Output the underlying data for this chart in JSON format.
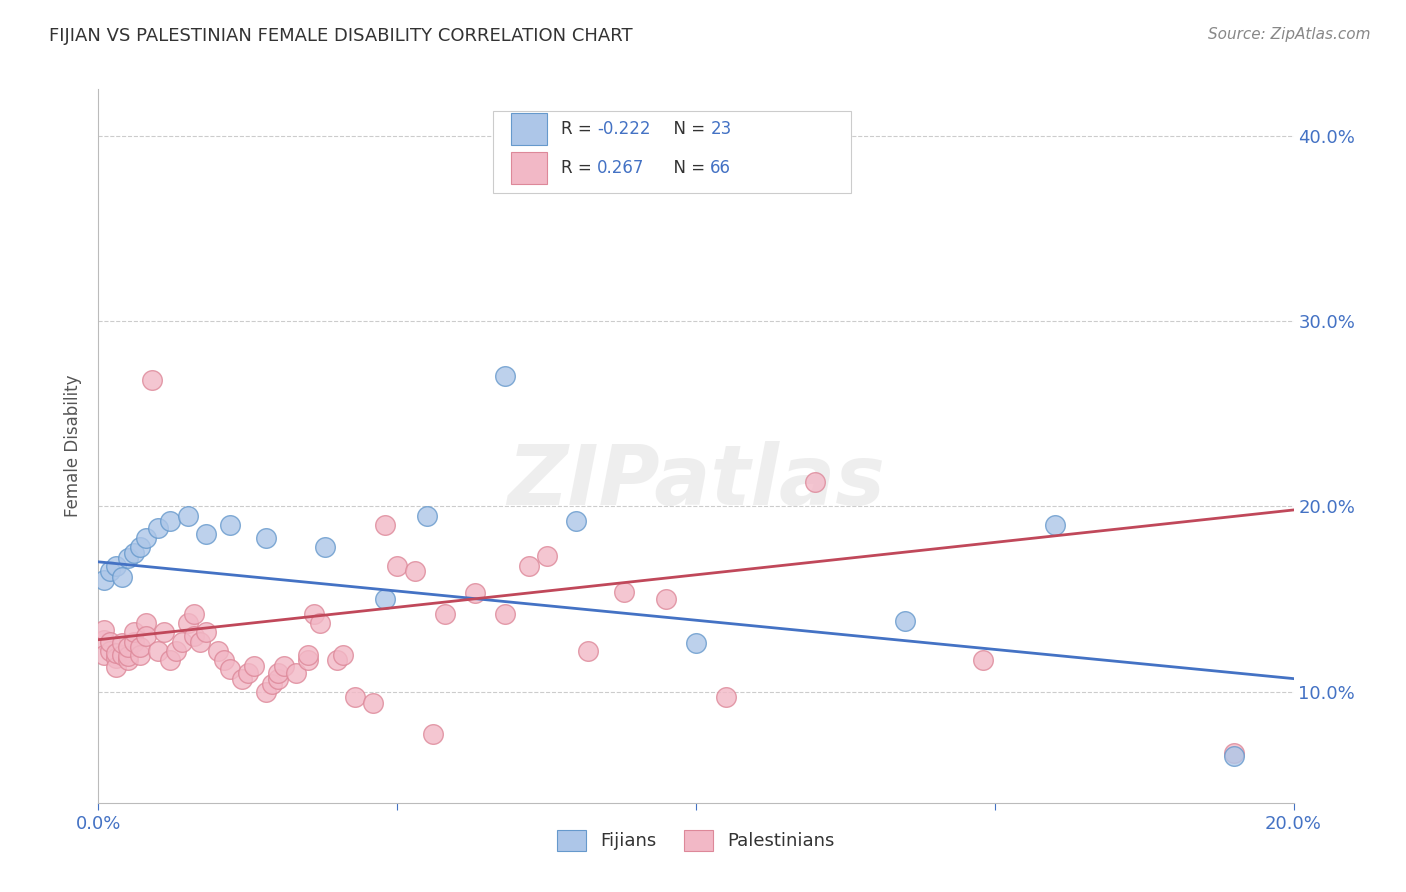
{
  "title": "FIJIAN VS PALESTINIAN FEMALE DISABILITY CORRELATION CHART",
  "source": "Source: ZipAtlas.com",
  "ylabel_label": "Female Disability",
  "xlim": [
    0.0,
    0.2
  ],
  "ylim": [
    0.04,
    0.425
  ],
  "xtick_positions": [
    0.0,
    0.05,
    0.1,
    0.15,
    0.2
  ],
  "xtick_labels": [
    "0.0%",
    "",
    "",
    "",
    "20.0%"
  ],
  "ytick_positions": [
    0.1,
    0.2,
    0.3,
    0.4
  ],
  "ytick_labels": [
    "10.0%",
    "20.0%",
    "30.0%",
    "40.0%"
  ],
  "fijian_color": "#adc6e8",
  "fijian_edge": "#6699cc",
  "palestinian_color": "#f2b8c6",
  "palestinian_edge": "#dd8899",
  "line_fijian": "#4472c4",
  "line_palestinian": "#c0485a",
  "line_fijian_y0": 0.17,
  "line_fijian_y1": 0.107,
  "line_palestinian_y0": 0.128,
  "line_palestinian_y1": 0.198,
  "R_fijian": "-0.222",
  "N_fijian": "23",
  "R_palestinian": "0.267",
  "N_palestinian": "66",
  "fijian_x": [
    0.001,
    0.002,
    0.003,
    0.004,
    0.005,
    0.006,
    0.007,
    0.008,
    0.01,
    0.012,
    0.015,
    0.018,
    0.022,
    0.028,
    0.038,
    0.048,
    0.055,
    0.068,
    0.08,
    0.1,
    0.135,
    0.16,
    0.19
  ],
  "fijian_y": [
    0.16,
    0.165,
    0.168,
    0.162,
    0.172,
    0.175,
    0.178,
    0.183,
    0.188,
    0.192,
    0.195,
    0.185,
    0.19,
    0.183,
    0.178,
    0.15,
    0.195,
    0.27,
    0.192,
    0.126,
    0.138,
    0.19,
    0.065
  ],
  "palestinian_x": [
    0.001,
    0.001,
    0.001,
    0.002,
    0.002,
    0.003,
    0.003,
    0.003,
    0.004,
    0.004,
    0.005,
    0.005,
    0.005,
    0.006,
    0.006,
    0.007,
    0.007,
    0.008,
    0.008,
    0.009,
    0.01,
    0.011,
    0.012,
    0.013,
    0.014,
    0.015,
    0.016,
    0.016,
    0.017,
    0.018,
    0.02,
    0.021,
    0.022,
    0.024,
    0.025,
    0.026,
    0.028,
    0.029,
    0.03,
    0.03,
    0.031,
    0.033,
    0.035,
    0.035,
    0.036,
    0.037,
    0.04,
    0.041,
    0.043,
    0.046,
    0.048,
    0.05,
    0.053,
    0.056,
    0.058,
    0.063,
    0.068,
    0.072,
    0.075,
    0.082,
    0.088,
    0.095,
    0.105,
    0.12,
    0.148,
    0.19
  ],
  "palestinian_y": [
    0.128,
    0.133,
    0.12,
    0.122,
    0.127,
    0.118,
    0.113,
    0.121,
    0.12,
    0.126,
    0.117,
    0.119,
    0.124,
    0.127,
    0.132,
    0.12,
    0.124,
    0.137,
    0.13,
    0.268,
    0.122,
    0.132,
    0.117,
    0.122,
    0.127,
    0.137,
    0.142,
    0.13,
    0.127,
    0.132,
    0.122,
    0.117,
    0.112,
    0.107,
    0.11,
    0.114,
    0.1,
    0.104,
    0.107,
    0.11,
    0.114,
    0.11,
    0.117,
    0.12,
    0.142,
    0.137,
    0.117,
    0.12,
    0.097,
    0.094,
    0.19,
    0.168,
    0.165,
    0.077,
    0.142,
    0.153,
    0.142,
    0.168,
    0.173,
    0.122,
    0.154,
    0.15,
    0.097,
    0.213,
    0.117,
    0.067
  ],
  "background_color": "#ffffff",
  "grid_color": "#cccccc",
  "title_color": "#333333",
  "source_color": "#888888",
  "axis_label_color": "#555555",
  "tick_color": "#4472c4",
  "watermark": "ZIPatlas",
  "watermark_color": "#dedede",
  "legend_text_color": "#333333",
  "legend_number_color": "#4472c4"
}
